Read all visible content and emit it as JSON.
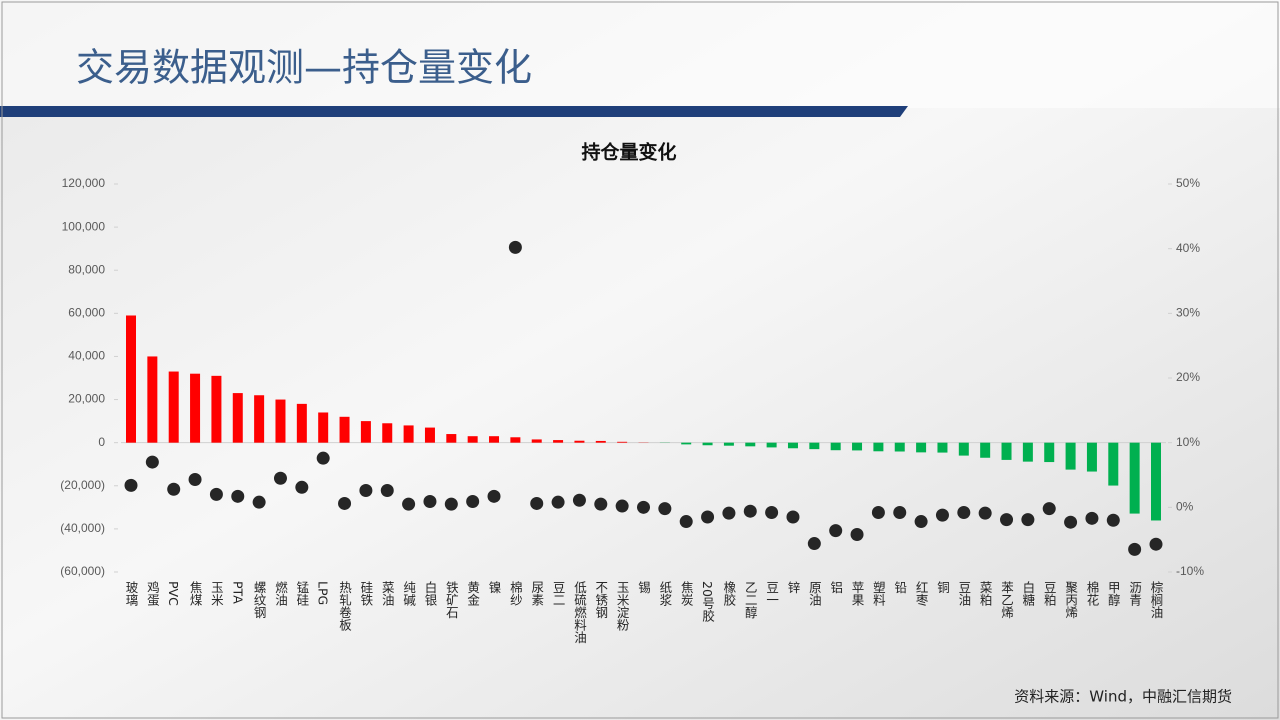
{
  "header": {
    "title": "交易数据观测—持仓量变化"
  },
  "footer": {
    "source": "资料来源：Wind，中融汇信期货"
  },
  "chart_data": {
    "type": "bar-dot",
    "title": "持仓量变化",
    "categories": [
      "玻璃",
      "鸡蛋",
      "PVC",
      "焦煤",
      "玉米",
      "PTA",
      "螺纹钢",
      "燃油",
      "锰硅",
      "LPG",
      "热轧卷板",
      "硅铁",
      "菜油",
      "纯碱",
      "白银",
      "铁矿石",
      "黄金",
      "镍",
      "棉纱",
      "尿素",
      "豆二",
      "低硫燃料油",
      "不锈钢",
      "玉米淀粉",
      "锡",
      "纸浆",
      "焦炭",
      "20号胶",
      "橡胶",
      "乙二醇",
      "豆一",
      "锌",
      "原油",
      "铝",
      "苹果",
      "塑料",
      "铅",
      "红枣",
      "铜",
      "豆油",
      "菜粕",
      "苯乙烯",
      "白糖",
      "豆粕",
      "聚丙烯",
      "棉花",
      "甲醇",
      "沥青",
      "棕榈油"
    ],
    "series": [
      {
        "type": "bar",
        "color": "#ff0000",
        "negative_color": "#00b050",
        "values": [
          59000,
          40000,
          33000,
          32000,
          31000,
          23000,
          22000,
          20000,
          18000,
          14000,
          12000,
          10000,
          9000,
          8000,
          7000,
          4000,
          3000,
          3000,
          2500,
          1500,
          1200,
          900,
          800,
          400,
          100,
          -100,
          -800,
          -1200,
          -1400,
          -1700,
          -2200,
          -2600,
          -3000,
          -3500,
          -3600,
          -4000,
          -4100,
          -4500,
          -4600,
          -6000,
          -7000,
          -8000,
          -8800,
          -9000,
          -12500,
          -13400,
          -19900,
          -32900,
          -36100
        ]
      },
      {
        "type": "scatter",
        "axis": "y2",
        "color": "#262626",
        "values": [
          3.4,
          7.0,
          2.8,
          4.3,
          2.0,
          1.7,
          0.8,
          4.5,
          3.1,
          7.6,
          0.6,
          2.6,
          2.6,
          0.5,
          0.9,
          0.5,
          0.9,
          1.7,
          40.2,
          0.6,
          0.8,
          1.1,
          0.5,
          0.2,
          0,
          -0.2,
          -2.2,
          -1.5,
          -0.9,
          -0.6,
          -0.8,
          -1.5,
          -5.6,
          -3.6,
          -4.2,
          -0.8,
          -0.8,
          -2.2,
          -1.2,
          -0.8,
          -0.9,
          -1.9,
          -1.9,
          -0.2,
          -2.3,
          -1.7,
          -2.0,
          -6.5,
          -5.7
        ]
      }
    ],
    "ylim": [
      -60000,
      120000
    ],
    "yticks": [
      {
        "value": 120000,
        "label": "120,000"
      },
      {
        "value": 100000,
        "label": "100,000"
      },
      {
        "value": 80000,
        "label": "80,000"
      },
      {
        "value": 60000,
        "label": "60,000"
      },
      {
        "value": 40000,
        "label": "40,000"
      },
      {
        "value": 20000,
        "label": "20,000"
      },
      0,
      {
        "value": -20000,
        "label": "(20,000)"
      },
      {
        "value": -40000,
        "label": "(40,000)"
      },
      {
        "value": -60000,
        "label": "(60,000)"
      }
    ],
    "y2lim": [
      -10,
      50
    ],
    "y2ticks": [
      {
        "value": 50,
        "label": "50%"
      },
      {
        "value": 40,
        "label": "40%"
      },
      {
        "value": 30,
        "label": "30%"
      },
      {
        "value": 20,
        "label": "20%"
      },
      {
        "value": 10,
        "label": "10%"
      },
      {
        "value": 0,
        "label": "0%"
      },
      {
        "value": -10,
        "label": "-10%"
      }
    ]
  }
}
